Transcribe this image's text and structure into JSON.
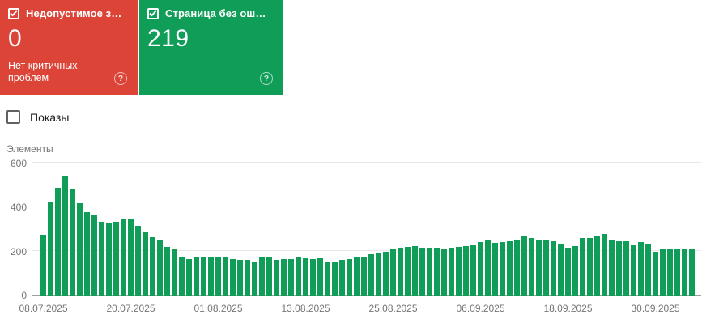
{
  "cards": [
    {
      "label": "Недопустимое з…",
      "value": "0",
      "subtext": "Нет критичных проблем",
      "color": "#db4437",
      "checkbox_checked": true
    },
    {
      "label": "Страница без ош…",
      "value": "219",
      "subtext": "",
      "color": "#0f9d58",
      "checkbox_checked": true
    }
  ],
  "help_icon_glyph": "?",
  "filter": {
    "label": "Показы",
    "checked": false
  },
  "chart_data": {
    "type": "bar",
    "title": "",
    "ylabel": "Элементы",
    "xlabel": "",
    "ylim": [
      0,
      600
    ],
    "yticks": [
      0,
      200,
      400,
      600
    ],
    "grid": true,
    "bar_color": "#0f9d58",
    "x_tick_labels": [
      {
        "index": 0,
        "label": "08.07.2025"
      },
      {
        "index": 12,
        "label": "20.07.2025"
      },
      {
        "index": 24,
        "label": "01.08.2025"
      },
      {
        "index": 36,
        "label": "13.08.2025"
      },
      {
        "index": 48,
        "label": "25.08.2025"
      },
      {
        "index": 60,
        "label": "06.09.2025"
      },
      {
        "index": 72,
        "label": "18.09.2025"
      },
      {
        "index": 84,
        "label": "30.09.2025"
      }
    ],
    "values": [
      278,
      428,
      493,
      548,
      487,
      423,
      382,
      369,
      337,
      332,
      340,
      355,
      349,
      321,
      293,
      270,
      253,
      225,
      213,
      176,
      170,
      179,
      175,
      179,
      179,
      176,
      169,
      164,
      164,
      157,
      179,
      182,
      167,
      169,
      170,
      176,
      173,
      170,
      173,
      160,
      154,
      164,
      169,
      175,
      182,
      191,
      195,
      204,
      216,
      222,
      225,
      228,
      222,
      222,
      222,
      219,
      222,
      225,
      228,
      237,
      247,
      253,
      244,
      247,
      249,
      256,
      272,
      264,
      259,
      256,
      249,
      240,
      222,
      228,
      265,
      265,
      277,
      284,
      255,
      250,
      250,
      234,
      247,
      238,
      201,
      218,
      216,
      212,
      213,
      218
    ]
  }
}
